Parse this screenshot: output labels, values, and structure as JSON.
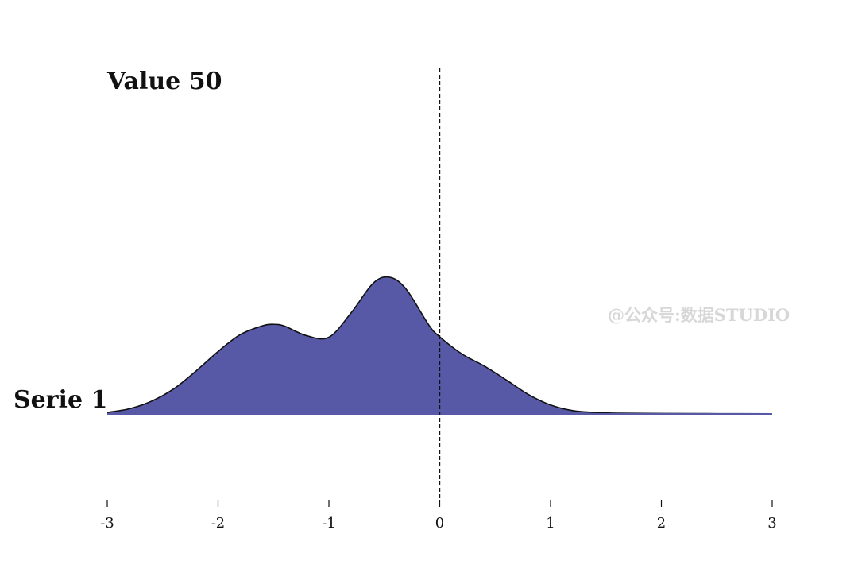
{
  "chart_data": {
    "type": "area",
    "title": "Value 50",
    "series_label": "Serie 1",
    "watermark": "@公众号:数据STUDIO",
    "xlim": [
      -3,
      3
    ],
    "xticks": [
      -3,
      -2,
      -1,
      0,
      1,
      2,
      3
    ],
    "xtick_labels": [
      "-3",
      "-2",
      "-1",
      "0",
      "1",
      "2",
      "3"
    ],
    "reference_line_x": 0,
    "fill_color": "#5758a6",
    "line_color": "#111111",
    "series": [
      {
        "x": [
          -3.0,
          -2.8,
          -2.6,
          -2.4,
          -2.2,
          -2.0,
          -1.8,
          -1.6,
          -1.5,
          -1.4,
          -1.2,
          -1.0,
          -0.8,
          -0.6,
          -0.45,
          -0.3,
          -0.1,
          0.0,
          0.2,
          0.4,
          0.6,
          0.8,
          1.0,
          1.2,
          1.4,
          1.6,
          2.0,
          2.5,
          3.0
        ],
        "y": [
          0.01,
          0.034,
          0.084,
          0.165,
          0.282,
          0.411,
          0.522,
          0.58,
          0.59,
          0.578,
          0.515,
          0.505,
          0.665,
          0.861,
          0.9,
          0.819,
          0.587,
          0.508,
          0.395,
          0.316,
          0.224,
          0.128,
          0.059,
          0.022,
          0.01,
          0.005,
          0.003,
          0.002,
          0.001
        ]
      }
    ]
  }
}
